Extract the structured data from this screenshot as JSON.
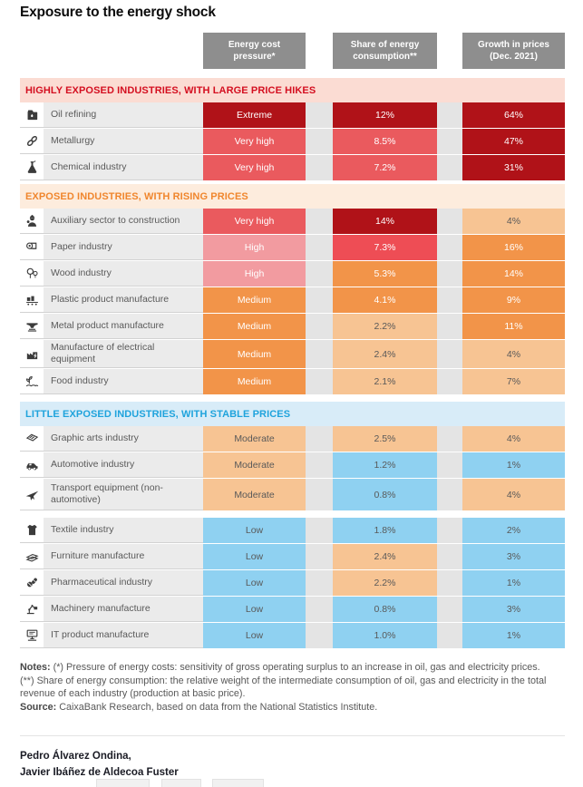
{
  "title": "Exposure to the energy shock",
  "chart_data": {
    "type": "table",
    "columns": [
      "Energy cost pressure*",
      "Share of energy consumption**",
      "Growth in prices (Dec. 2021)"
    ],
    "palette": {
      "darkRed": "#b01218",
      "midRed": "#ea5a5e",
      "brightRed": "#ee4d55",
      "pink": "#f29ba0",
      "orange": "#f29449",
      "lightOrange": "#f7c493",
      "blue": "#8fd1f1"
    },
    "dark_text_colors": [
      "lightOrange",
      "blue"
    ],
    "sections": [
      {
        "title": "HIGHLY EXPOSED INDUSTRIES, WITH LARGE PRICE HIKES",
        "accent": "#d40f20",
        "band_bg": "#fbdcd3",
        "rows": [
          {
            "icon": "oil-can-icon",
            "label": "Oil refining",
            "pressure": [
              "Extreme",
              "darkRed"
            ],
            "share": [
              "12%",
              "darkRed"
            ],
            "growth": [
              "64%",
              "darkRed"
            ]
          },
          {
            "icon": "chain-link-icon",
            "label": "Metallurgy",
            "pressure": [
              "Very high",
              "midRed"
            ],
            "share": [
              "8.5%",
              "midRed"
            ],
            "growth": [
              "47%",
              "darkRed"
            ]
          },
          {
            "icon": "flask-icon",
            "label": "Chemical industry",
            "pressure": [
              "Very high",
              "midRed"
            ],
            "share": [
              "7.2%",
              "midRed"
            ],
            "growth": [
              "31%",
              "darkRed"
            ]
          }
        ]
      },
      {
        "title": "EXPOSED INDUSTRIES, WITH RISING PRICES",
        "accent": "#f0862d",
        "band_bg": "#fdecdd",
        "rows": [
          {
            "icon": "construction-worker-icon",
            "label": "Auxiliary sector to construction",
            "pressure": [
              "Very high",
              "midRed"
            ],
            "share": [
              "14%",
              "darkRed"
            ],
            "growth": [
              "4%",
              "lightOrange"
            ]
          },
          {
            "icon": "paper-roll-icon",
            "label": "Paper industry",
            "pressure": [
              "High",
              "pink"
            ],
            "share": [
              "7.3%",
              "brightRed"
            ],
            "growth": [
              "16%",
              "orange"
            ]
          },
          {
            "icon": "trees-icon",
            "label": "Wood industry",
            "pressure": [
              "High",
              "pink"
            ],
            "share": [
              "5.3%",
              "orange"
            ],
            "growth": [
              "14%",
              "orange"
            ]
          },
          {
            "icon": "conveyor-icon",
            "label": "Plastic product manufacture",
            "pressure": [
              "Medium",
              "orange"
            ],
            "share": [
              "4.1%",
              "orange"
            ],
            "growth": [
              "9%",
              "orange"
            ]
          },
          {
            "icon": "anvil-icon",
            "label": "Metal product manufacture",
            "pressure": [
              "Medium",
              "orange"
            ],
            "share": [
              "2.2%",
              "lightOrange"
            ],
            "growth": [
              "11%",
              "orange"
            ]
          },
          {
            "icon": "factory-lightning-icon",
            "label": "Manufacture of electrical equipment",
            "pressure": [
              "Medium",
              "orange"
            ],
            "share": [
              "2.4%",
              "lightOrange"
            ],
            "growth": [
              "4%",
              "lightOrange"
            ]
          },
          {
            "icon": "crop-field-icon",
            "label": "Food industry",
            "pressure": [
              "Medium",
              "orange"
            ],
            "share": [
              "2.1%",
              "lightOrange"
            ],
            "growth": [
              "7%",
              "lightOrange"
            ]
          }
        ]
      },
      {
        "title": "LITTLE EXPOSED INDUSTRIES, WITH STABLE PRICES",
        "accent": "#1fa3dc",
        "band_bg": "#d8ecf8",
        "rows": [
          {
            "icon": "newspaper-icon",
            "label": "Graphic arts industry",
            "pressure": [
              "Moderate",
              "lightOrange"
            ],
            "share": [
              "2.5%",
              "lightOrange"
            ],
            "growth": [
              "4%",
              "lightOrange"
            ]
          },
          {
            "icon": "car-icon",
            "label": "Automotive industry",
            "pressure": [
              "Moderate",
              "lightOrange"
            ],
            "share": [
              "1.2%",
              "blue"
            ],
            "growth": [
              "1%",
              "blue"
            ]
          },
          {
            "icon": "airplane-icon",
            "label": "Transport equipment (non-automotive)",
            "pressure": [
              "Moderate",
              "lightOrange"
            ],
            "share": [
              "0.8%",
              "blue"
            ],
            "growth": [
              "4%",
              "lightOrange"
            ],
            "tall": true
          },
          {
            "icon": "tshirt-icon",
            "label": "Textile industry",
            "pressure": [
              "Low",
              "blue"
            ],
            "share": [
              "1.8%",
              "blue"
            ],
            "growth": [
              "2%",
              "blue"
            ],
            "gap_before": true
          },
          {
            "icon": "planks-icon",
            "label": "Furniture manufacture",
            "pressure": [
              "Low",
              "blue"
            ],
            "share": [
              "2.4%",
              "lightOrange"
            ],
            "growth": [
              "3%",
              "blue"
            ]
          },
          {
            "icon": "pills-icon",
            "label": "Pharmaceutical industry",
            "pressure": [
              "Low",
              "blue"
            ],
            "share": [
              "2.2%",
              "lightOrange"
            ],
            "growth": [
              "1%",
              "blue"
            ]
          },
          {
            "icon": "robot-arm-icon",
            "label": "Machinery manufacture",
            "pressure": [
              "Low",
              "blue"
            ],
            "share": [
              "0.8%",
              "blue"
            ],
            "growth": [
              "3%",
              "blue"
            ]
          },
          {
            "icon": "computer-icon",
            "label": "IT product manufacture",
            "pressure": [
              "Low",
              "blue"
            ],
            "share": [
              "1.0%",
              "blue"
            ],
            "growth": [
              "1%",
              "blue"
            ]
          }
        ]
      }
    ]
  },
  "notes": [
    {
      "prefix": "Notes:",
      "text": " (*) Pressure of energy costs: sensitivity of gross operating surplus to an increase in oil, gas and electricity prices."
    },
    {
      "prefix": "",
      "text": "(**) Share of energy consumption: the relative weight of the intermediate consumption of oil, gas and electricity in the total revenue of each industry (production at basic price)."
    },
    {
      "prefix": "Source:",
      "text": " CaixaBank Research, based on data from the National Statistics Institute."
    }
  ],
  "authors": [
    "Pedro Álvarez Ondina,",
    "Javier Ibáñez de Aldecoa Fuster"
  ]
}
